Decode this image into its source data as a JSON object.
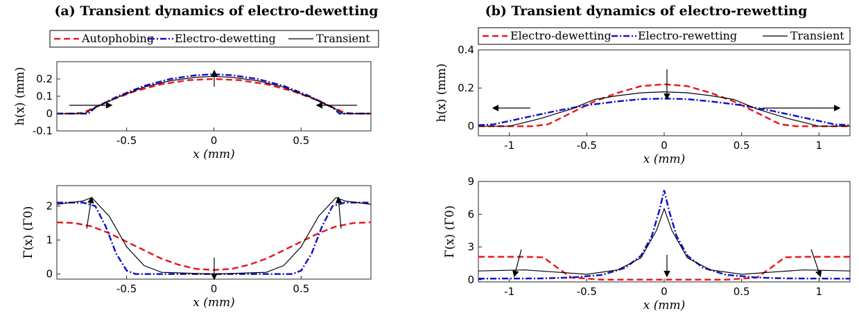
{
  "colors": {
    "autophobing": "#e8191b",
    "electro_dewetting_a": "#1212c8",
    "transient": "#000000",
    "electro_dewetting_b": "#e8191b",
    "electro_rewetting": "#1212c8"
  },
  "panels": [
    {
      "title": "(a) Transient dynamics of electro-dewetting",
      "legend": [
        "Autophobing",
        "Electro-dewetting",
        "Transient"
      ]
    },
    {
      "title": "(b) Transient dynamics of electro-rewetting",
      "legend": [
        "Electro-dewetting",
        "Electro-rewetting",
        "Transient"
      ]
    }
  ],
  "chart_data": [
    {
      "type": "line",
      "panel": "a-top",
      "xlabel": "x (mm)",
      "ylabel": "h(x) (mm)",
      "xlim": [
        -0.9,
        0.9
      ],
      "ylim": [
        -0.1,
        0.3
      ],
      "xticks": [
        -0.5,
        0,
        0.5
      ],
      "xtick_labels": [
        "-0.5",
        "0",
        "0.5"
      ],
      "yticks": [
        -0.1,
        0,
        0.1,
        0.2
      ],
      "ytick_labels": [
        "-0.1",
        "0",
        "0.1",
        "0.2"
      ],
      "series": [
        {
          "name": "Autophobing",
          "style": "dashed",
          "x": [
            -0.9,
            -0.8,
            -0.75,
            -0.6,
            -0.45,
            -0.3,
            -0.15,
            0,
            0.15,
            0.3,
            0.45,
            0.6,
            0.75,
            0.8,
            0.9
          ],
          "y": [
            0,
            0,
            0.005,
            0.075,
            0.13,
            0.17,
            0.193,
            0.2,
            0.193,
            0.17,
            0.13,
            0.075,
            0.005,
            0,
            0
          ]
        },
        {
          "name": "Electro-dewetting",
          "style": "dashdot",
          "x": [
            -0.9,
            -0.72,
            -0.68,
            -0.55,
            -0.4,
            -0.25,
            -0.1,
            0,
            0.1,
            0.25,
            0.4,
            0.55,
            0.68,
            0.72,
            0.9
          ],
          "y": [
            0,
            0,
            0.035,
            0.1,
            0.16,
            0.2,
            0.222,
            0.227,
            0.222,
            0.2,
            0.16,
            0.1,
            0.035,
            0,
            0
          ]
        },
        {
          "name": "Transient",
          "style": "solid",
          "x": [
            -0.9,
            -0.74,
            -0.7,
            -0.55,
            -0.4,
            -0.25,
            -0.1,
            0,
            0.1,
            0.25,
            0.4,
            0.55,
            0.7,
            0.74,
            0.9
          ],
          "y": [
            0,
            0,
            0.025,
            0.095,
            0.153,
            0.19,
            0.21,
            0.215,
            0.21,
            0.19,
            0.153,
            0.095,
            0.025,
            0,
            0
          ]
        }
      ]
    },
    {
      "type": "line",
      "panel": "a-bottom",
      "xlabel": "x (mm)",
      "ylabel": "Γ(x) (Γ0)",
      "xlim": [
        -0.9,
        0.9
      ],
      "ylim": [
        -0.15,
        2.6
      ],
      "xticks": [
        -0.5,
        0,
        0.5
      ],
      "xtick_labels": [
        "-0.5",
        "0",
        "0.5"
      ],
      "yticks": [
        0,
        1,
        2
      ],
      "ytick_labels": [
        "0",
        "1",
        "2"
      ],
      "series": [
        {
          "name": "Autophobing",
          "style": "dashed",
          "x": [
            -0.9,
            -0.8,
            -0.7,
            -0.6,
            -0.5,
            -0.4,
            -0.3,
            -0.2,
            -0.1,
            0,
            0.1,
            0.2,
            0.3,
            0.4,
            0.5,
            0.6,
            0.7,
            0.8,
            0.9
          ],
          "y": [
            1.52,
            1.5,
            1.4,
            1.2,
            0.95,
            0.7,
            0.45,
            0.27,
            0.15,
            0.12,
            0.15,
            0.27,
            0.45,
            0.7,
            0.95,
            1.2,
            1.4,
            1.5,
            1.52
          ]
        },
        {
          "name": "Electro-dewetting",
          "style": "dashdot",
          "x": [
            -0.9,
            -0.75,
            -0.68,
            -0.62,
            -0.56,
            -0.5,
            -0.45,
            0,
            0.45,
            0.5,
            0.56,
            0.62,
            0.68,
            0.75,
            0.9
          ],
          "y": [
            2.1,
            2.1,
            2.0,
            1.4,
            0.6,
            0.1,
            0,
            0,
            0,
            0.1,
            0.6,
            1.4,
            2.0,
            2.1,
            2.1
          ]
        },
        {
          "name": "Transient",
          "style": "solid",
          "x": [
            -0.9,
            -0.75,
            -0.7,
            -0.6,
            -0.5,
            -0.4,
            -0.3,
            0,
            0.3,
            0.4,
            0.5,
            0.6,
            0.7,
            0.75,
            0.9
          ],
          "y": [
            2.05,
            2.15,
            2.25,
            1.7,
            0.8,
            0.25,
            0.05,
            0,
            0.05,
            0.25,
            0.8,
            1.7,
            2.25,
            2.15,
            2.05
          ]
        }
      ]
    },
    {
      "type": "line",
      "panel": "b-top",
      "xlabel": "x (mm)",
      "ylabel": "h(x) (mm)",
      "xlim": [
        -1.2,
        1.2
      ],
      "ylim": [
        -0.05,
        0.4
      ],
      "xticks": [
        -1,
        -0.5,
        0,
        0.5,
        1
      ],
      "xtick_labels": [
        "-1",
        "-0.5",
        "0",
        "0.5",
        "1"
      ],
      "yticks": [
        0,
        0.2,
        0.4
      ],
      "ytick_labels": [
        "0",
        "0.2",
        "0.4"
      ],
      "series": [
        {
          "name": "Electro-dewetting",
          "style": "dashed",
          "x": [
            -1.2,
            -0.85,
            -0.75,
            -0.6,
            -0.45,
            -0.3,
            -0.15,
            0,
            0.15,
            0.3,
            0.45,
            0.6,
            0.75,
            0.85,
            1.2
          ],
          "y": [
            0,
            0,
            0.01,
            0.07,
            0.13,
            0.175,
            0.21,
            0.22,
            0.21,
            0.175,
            0.13,
            0.07,
            0.01,
            0,
            0
          ]
        },
        {
          "name": "Electro-rewetting",
          "style": "dashdot",
          "x": [
            -1.2,
            -1.1,
            -0.9,
            -0.7,
            -0.5,
            -0.3,
            -0.15,
            0,
            0.15,
            0.3,
            0.5,
            0.7,
            0.9,
            1.1,
            1.2
          ],
          "y": [
            0.005,
            0.01,
            0.045,
            0.08,
            0.11,
            0.13,
            0.142,
            0.145,
            0.142,
            0.13,
            0.11,
            0.08,
            0.045,
            0.01,
            0.005
          ]
        },
        {
          "name": "Transient",
          "style": "solid",
          "x": [
            -1.2,
            -1.0,
            -0.8,
            -0.6,
            -0.45,
            -0.3,
            -0.15,
            0,
            0.15,
            0.3,
            0.45,
            0.6,
            0.8,
            1.0,
            1.2
          ],
          "y": [
            0,
            0,
            0.04,
            0.09,
            0.14,
            0.16,
            0.175,
            0.18,
            0.175,
            0.16,
            0.14,
            0.09,
            0.04,
            0,
            0
          ]
        }
      ]
    },
    {
      "type": "line",
      "panel": "b-bottom",
      "xlabel": "x (mm)",
      "ylabel": "Γ(x) (Γ0)",
      "xlim": [
        -1.2,
        1.2
      ],
      "ylim": [
        -0.2,
        9
      ],
      "xticks": [
        -1,
        -0.5,
        0,
        0.5,
        1
      ],
      "xtick_labels": [
        "-1",
        "-0.5",
        "0",
        "0.5",
        "1"
      ],
      "yticks": [
        0,
        3,
        6,
        9
      ],
      "ytick_labels": [
        "0",
        "3",
        "6",
        "9"
      ],
      "series": [
        {
          "name": "Electro-dewetting",
          "style": "dashed",
          "x": [
            -1.2,
            -0.9,
            -0.78,
            -0.7,
            -0.6,
            -0.4,
            0,
            0.4,
            0.6,
            0.7,
            0.78,
            0.9,
            1.2
          ],
          "y": [
            2.1,
            2.1,
            2.05,
            1.2,
            0.2,
            0,
            0,
            0,
            0.2,
            1.2,
            2.05,
            2.1,
            2.1
          ]
        },
        {
          "name": "Electro-rewetting",
          "style": "dashdot",
          "x": [
            -1.2,
            -0.8,
            -0.6,
            -0.4,
            -0.25,
            -0.15,
            -0.08,
            -0.03,
            0,
            0.03,
            0.08,
            0.15,
            0.25,
            0.4,
            0.6,
            0.8,
            1.2
          ],
          "y": [
            0.1,
            0.12,
            0.2,
            0.45,
            1.1,
            2.2,
            4.0,
            6.4,
            8.2,
            6.4,
            4.0,
            2.2,
            1.1,
            0.45,
            0.2,
            0.12,
            0.1
          ]
        },
        {
          "name": "Transient",
          "style": "solid",
          "x": [
            -1.2,
            -0.9,
            -0.7,
            -0.5,
            -0.3,
            -0.15,
            -0.05,
            0,
            0.05,
            0.15,
            0.3,
            0.5,
            0.7,
            0.9,
            1.2
          ],
          "y": [
            0.8,
            0.9,
            0.7,
            0.5,
            0.9,
            2.0,
            4.5,
            6.5,
            4.5,
            2.0,
            0.9,
            0.5,
            0.7,
            0.9,
            0.8
          ]
        }
      ]
    }
  ]
}
